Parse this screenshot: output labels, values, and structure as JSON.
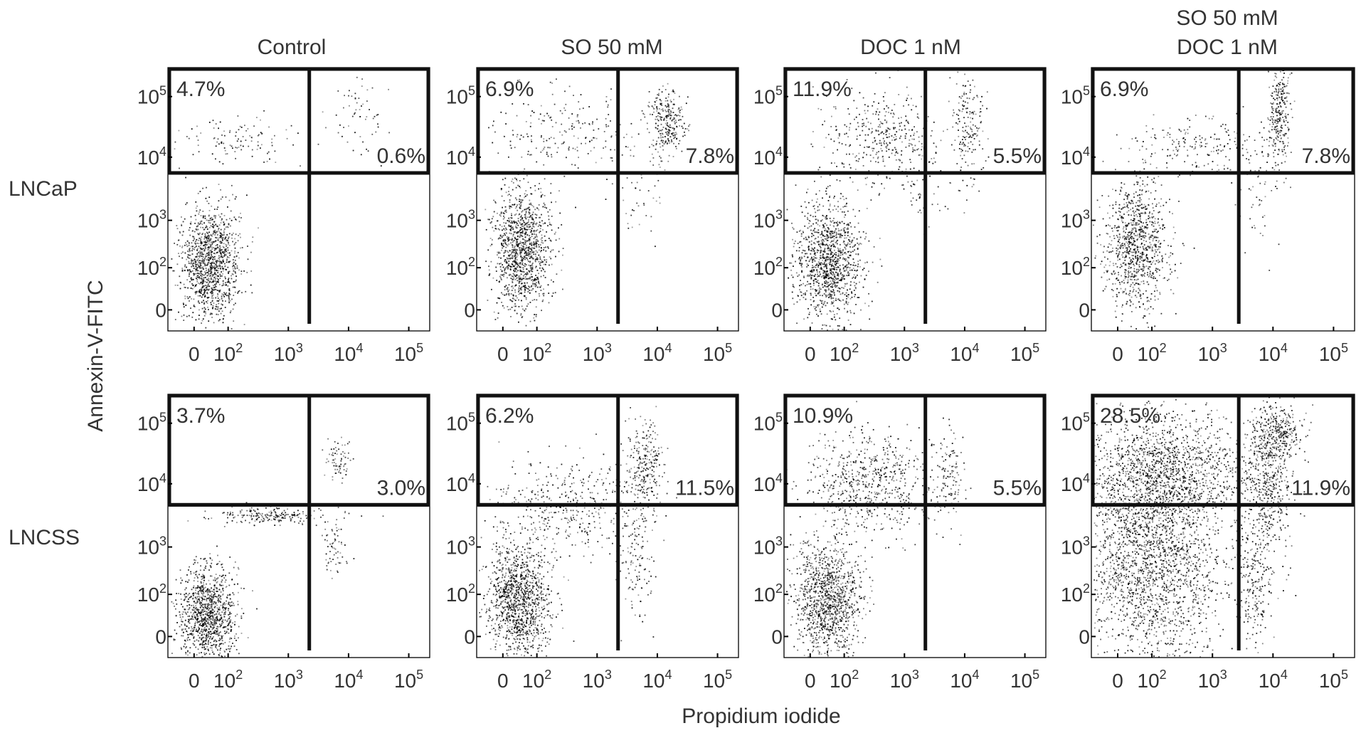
{
  "chart_data": {
    "type": "scatter",
    "axis_label_x": "Propidium iodide",
    "axis_label_y": "Annexin-V-FITC",
    "columns": [
      {
        "title": [
          "Control"
        ]
      },
      {
        "title": [
          "SO 50 mM"
        ]
      },
      {
        "title": [
          "DOC 1 nM"
        ]
      },
      {
        "title": [
          "SO 50 mM",
          "DOC 1 nM"
        ]
      }
    ],
    "rows": [
      {
        "label": "LNCaP"
      },
      {
        "label": "LNCSS"
      }
    ],
    "x_ticks": [
      {
        "base": "0",
        "exp": ""
      },
      {
        "base": "10",
        "exp": "2"
      },
      {
        "base": "10",
        "exp": "3"
      },
      {
        "base": "10",
        "exp": "4"
      },
      {
        "base": "10",
        "exp": "5"
      }
    ],
    "y_ticks": [
      {
        "base": "0",
        "exp": ""
      },
      {
        "base": "10",
        "exp": "2"
      },
      {
        "base": "10",
        "exp": "3"
      },
      {
        "base": "10",
        "exp": "4"
      },
      {
        "base": "10",
        "exp": "5"
      }
    ],
    "panels": [
      {
        "row": 0,
        "col": 0,
        "early_apoptotic": "4.7%",
        "late_apoptotic": "0.6%"
      },
      {
        "row": 0,
        "col": 1,
        "early_apoptotic": "6.9%",
        "late_apoptotic": "7.8%"
      },
      {
        "row": 0,
        "col": 2,
        "early_apoptotic": "11.9%",
        "late_apoptotic": "5.5%"
      },
      {
        "row": 0,
        "col": 3,
        "early_apoptotic": "6.9%",
        "late_apoptotic": "7.8%"
      },
      {
        "row": 1,
        "col": 0,
        "early_apoptotic": "3.7%",
        "late_apoptotic": "3.0%"
      },
      {
        "row": 1,
        "col": 1,
        "early_apoptotic": "6.2%",
        "late_apoptotic": "11.5%"
      },
      {
        "row": 1,
        "col": 2,
        "early_apoptotic": "10.9%",
        "late_apoptotic": "5.5%"
      },
      {
        "row": 1,
        "col": 3,
        "early_apoptotic": "28.5%",
        "late_apoptotic": "11.9%"
      }
    ]
  }
}
